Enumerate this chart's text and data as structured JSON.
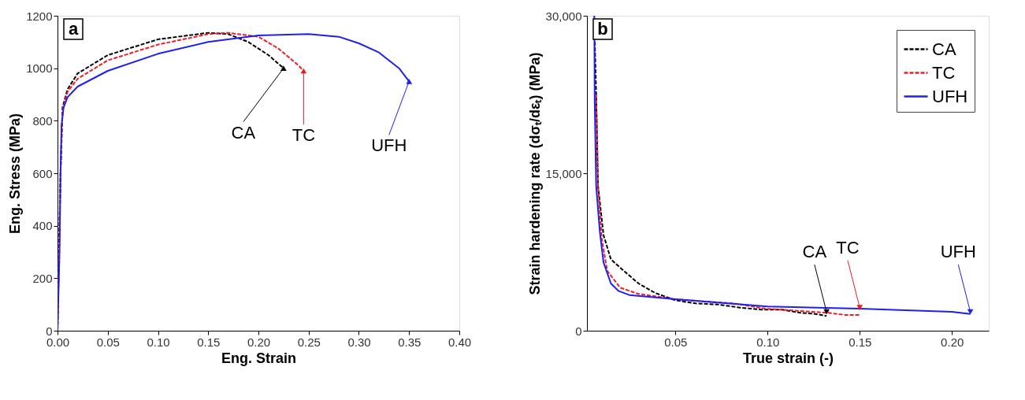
{
  "chart_data": [
    {
      "type": "line",
      "title": "a",
      "xlabel": "Eng. Strain",
      "ylabel": "Eng. Stress (MPa)",
      "xlim": [
        0,
        0.4
      ],
      "ylim": [
        0,
        1200
      ],
      "xticks": [
        {
          "value": 0,
          "label": "0.00"
        },
        0.05,
        {
          "value": 0.1,
          "label": "0.10"
        },
        0.15,
        {
          "value": 0.2,
          "label": "0.20"
        },
        0.25,
        {
          "value": 0.3,
          "label": "0.30"
        },
        0.35,
        {
          "value": 0.4,
          "label": "0.40"
        }
      ],
      "yticks": [
        0,
        200,
        400,
        600,
        800,
        1000,
        1200
      ],
      "grid": false,
      "legend": false,
      "series": [
        {
          "color": "#000000",
          "line_style": "dashed",
          "x": [
            0,
            0.003,
            0.005,
            0.01,
            0.02,
            0.05,
            0.1,
            0.15,
            0.17,
            0.19,
            0.21,
            0.225
          ],
          "values": [
            0,
            600,
            850,
            920,
            980,
            1050,
            1110,
            1135,
            1130,
            1100,
            1050,
            1000
          ]
        },
        {
          "color": "#ee1c25",
          "line_style": "dashed",
          "x": [
            0,
            0.003,
            0.005,
            0.01,
            0.02,
            0.05,
            0.1,
            0.15,
            0.17,
            0.2,
            0.22,
            0.24,
            0.245
          ],
          "values": [
            0,
            600,
            840,
            910,
            960,
            1030,
            1090,
            1130,
            1135,
            1120,
            1075,
            1010,
            990
          ]
        },
        {
          "color": "#1f1fef",
          "line_style": "solid",
          "x": [
            0,
            0.002,
            0.003,
            0.004,
            0.006,
            0.01,
            0.02,
            0.05,
            0.1,
            0.15,
            0.2,
            0.25,
            0.28,
            0.3,
            0.32,
            0.34,
            0.35
          ],
          "values": [
            0,
            300,
            600,
            780,
            850,
            890,
            930,
            990,
            1055,
            1100,
            1125,
            1130,
            1120,
            1095,
            1060,
            1000,
            950
          ]
        }
      ],
      "annotations": [
        {
          "text": "CA",
          "x": 0.225,
          "y": 1000
        },
        {
          "text": "TC",
          "x": 0.245,
          "y": 990
        },
        {
          "text": "UFH",
          "x": 0.35,
          "y": 950
        }
      ]
    },
    {
      "type": "line",
      "title": "b",
      "xlabel": "True strain (-)",
      "ylabel": "Strain hardening rate (dσₜ/dεₜ) (MPa)",
      "xlim": [
        0.002,
        0.22
      ],
      "ylim": [
        0,
        30000
      ],
      "xticks": [
        0.05,
        {
          "value": 0.1,
          "label": "0.10"
        },
        0.15,
        {
          "value": 0.2,
          "label": "0.20"
        }
      ],
      "yticks": [
        0,
        {
          "value": 15000,
          "label": "15,000"
        },
        {
          "value": 30000,
          "label": "30,000"
        }
      ],
      "grid": false,
      "legend": "top right",
      "series": [
        {
          "name": "CA",
          "color": "#000000",
          "line_style": "dashed",
          "x": [
            0.006,
            0.007,
            0.008,
            0.011,
            0.015,
            0.022,
            0.03,
            0.039,
            0.05,
            0.061,
            0.073,
            0.085,
            0.097,
            0.108,
            0.118,
            0.126,
            0.132
          ],
          "values": [
            29100,
            22500,
            13800,
            9100,
            6800,
            5700,
            4500,
            3600,
            2900,
            2600,
            2500,
            2200,
            2000,
            2000,
            1700,
            1600,
            1400
          ]
        },
        {
          "name": "TC",
          "color": "#ee1c25",
          "line_style": "dashed",
          "x": [
            0.007,
            0.008,
            0.01,
            0.013,
            0.02,
            0.03,
            0.05,
            0.065,
            0.082,
            0.099,
            0.116,
            0.133,
            0.142,
            0.15
          ],
          "values": [
            22500,
            13800,
            8800,
            5700,
            4100,
            3500,
            3000,
            2800,
            2600,
            2100,
            1900,
            1700,
            1500,
            1500
          ]
        },
        {
          "name": "UFH",
          "color": "#1f1fef",
          "line_style": "solid",
          "x": [
            0.006,
            0.0062,
            0.007,
            0.009,
            0.011,
            0.015,
            0.019,
            0.025,
            0.05,
            0.1,
            0.15,
            0.2,
            0.21
          ],
          "values": [
            30000,
            22000,
            13800,
            9400,
            6500,
            4500,
            3800,
            3400,
            3000,
            2300,
            2100,
            1800,
            1600
          ]
        }
      ],
      "annotations": [
        {
          "text": "CA",
          "x": 0.132,
          "y": 1800
        },
        {
          "text": "TC",
          "x": 0.15,
          "y": 2200
        },
        {
          "text": "UFH",
          "x": 0.21,
          "y": 1800
        }
      ]
    }
  ]
}
